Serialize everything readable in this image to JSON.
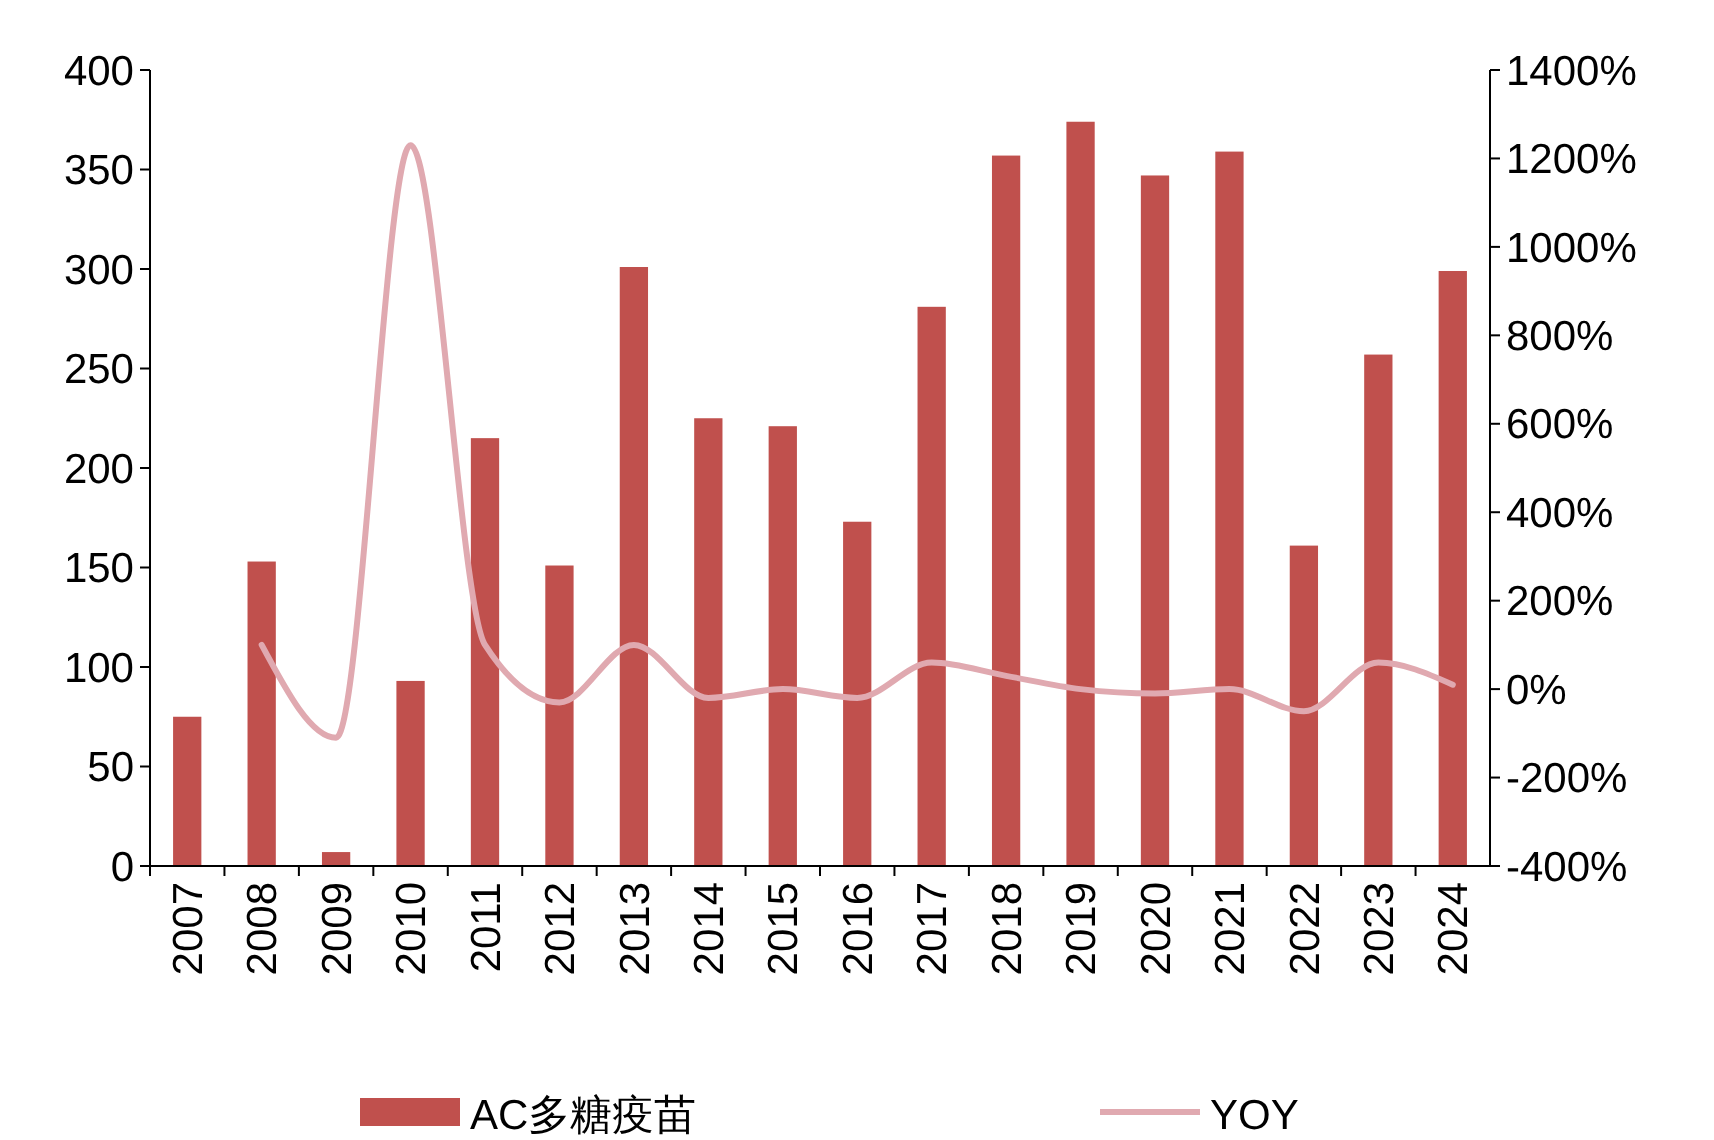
{
  "chart_data": {
    "type": "bar",
    "categories": [
      "2007",
      "2008",
      "2009",
      "2010",
      "2011",
      "2012",
      "2013",
      "2014",
      "2015",
      "2016",
      "2017",
      "2018",
      "2019",
      "2020",
      "2021",
      "2022",
      "2023",
      "2024"
    ],
    "series": [
      {
        "name": "AC多糖疫苗",
        "color": "#c0504d",
        "values": [
          75,
          153,
          7,
          93,
          215,
          151,
          301,
          225,
          221,
          173,
          281,
          357,
          374,
          347,
          359,
          161,
          257,
          299
        ]
      },
      {
        "name": "YOY",
        "type": "line",
        "axis": "y2",
        "color": "#e0a9b0",
        "values": [
          null,
          100,
          -110,
          1230,
          100,
          -30,
          100,
          -20,
          0,
          -20,
          60,
          30,
          0,
          -10,
          0,
          -50,
          60,
          10
        ]
      }
    ],
    "ylim": [
      0,
      400
    ],
    "yticks": [
      0,
      50,
      100,
      150,
      200,
      250,
      300,
      350,
      400
    ],
    "y2lim": [
      -400,
      1400
    ],
    "y2ticks": [
      {
        "value": -400,
        "label": "-400%"
      },
      {
        "value": -200,
        "label": "-200%"
      },
      {
        "value": 0,
        "label": "0%"
      },
      {
        "value": 200,
        "label": "200%"
      },
      {
        "value": 400,
        "label": "400%"
      },
      {
        "value": 600,
        "label": "600%"
      },
      {
        "value": 800,
        "label": "800%"
      },
      {
        "value": 1000,
        "label": "1000%"
      },
      {
        "value": 1200,
        "label": "1200%"
      },
      {
        "value": 1400,
        "label": "1400%"
      }
    ],
    "legend": "bottom",
    "grid": false
  }
}
